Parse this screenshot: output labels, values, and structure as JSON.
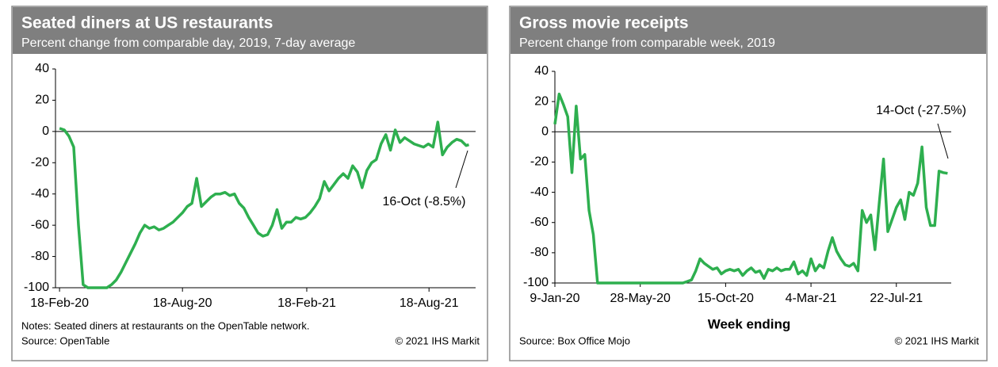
{
  "chart_data": [
    {
      "type": "line",
      "title": "Seated diners at US restaurants",
      "subtitle": "Percent change from comparable day, 2019, 7-day average",
      "notes": "Notes: Seated diners at restaurants on the OpenTable network.",
      "source": "Source: OpenTable",
      "copyright": "© 2021 IHS Markit",
      "annotation": "16-Oct (-8.5%)",
      "xlim": [
        "2020-02-12",
        "2021-10-26"
      ],
      "xticks": [
        {
          "value": "2020-02-18",
          "label": "18-Feb-20"
        },
        {
          "value": "2020-08-18",
          "label": "18-Aug-20"
        },
        {
          "value": "2021-02-18",
          "label": "18-Feb-21"
        },
        {
          "value": "2021-08-18",
          "label": "18-Aug-21"
        }
      ],
      "ylim": [
        -100,
        40
      ],
      "yticks": [
        40,
        20,
        0,
        -20,
        -40,
        -60,
        -80,
        -100
      ],
      "x": [
        "2020-02-18",
        "2020-02-25",
        "2020-03-03",
        "2020-03-10",
        "2020-03-17",
        "2020-03-24",
        "2020-03-31",
        "2020-04-14",
        "2020-04-28",
        "2020-05-05",
        "2020-05-12",
        "2020-05-19",
        "2020-05-26",
        "2020-06-02",
        "2020-06-09",
        "2020-06-16",
        "2020-06-23",
        "2020-06-30",
        "2020-07-07",
        "2020-07-14",
        "2020-07-21",
        "2020-07-28",
        "2020-08-04",
        "2020-08-11",
        "2020-08-18",
        "2020-08-25",
        "2020-09-01",
        "2020-09-08",
        "2020-09-15",
        "2020-09-22",
        "2020-09-29",
        "2020-10-06",
        "2020-10-13",
        "2020-10-20",
        "2020-10-27",
        "2020-11-03",
        "2020-11-10",
        "2020-11-17",
        "2020-11-24",
        "2020-12-01",
        "2020-12-08",
        "2020-12-15",
        "2020-12-22",
        "2020-12-29",
        "2021-01-05",
        "2021-01-12",
        "2021-01-19",
        "2021-01-26",
        "2021-02-02",
        "2021-02-09",
        "2021-02-16",
        "2021-02-23",
        "2021-03-02",
        "2021-03-09",
        "2021-03-16",
        "2021-03-23",
        "2021-03-30",
        "2021-04-06",
        "2021-04-13",
        "2021-04-20",
        "2021-04-27",
        "2021-05-04",
        "2021-05-11",
        "2021-05-18",
        "2021-05-25",
        "2021-06-01",
        "2021-06-08",
        "2021-06-15",
        "2021-06-22",
        "2021-06-29",
        "2021-07-06",
        "2021-07-13",
        "2021-07-20",
        "2021-07-27",
        "2021-08-03",
        "2021-08-10",
        "2021-08-17",
        "2021-08-24",
        "2021-08-31",
        "2021-09-07",
        "2021-09-14",
        "2021-09-21",
        "2021-09-28",
        "2021-10-05",
        "2021-10-12",
        "2021-10-16"
      ],
      "series": [
        {
          "name": "Seated diners",
          "color": "#2eaf4f",
          "values": [
            2,
            1,
            -3,
            -10,
            -60,
            -98,
            -100,
            -100,
            -100,
            -98,
            -95,
            -90,
            -84,
            -78,
            -72,
            -65,
            -60,
            -62,
            -61,
            -63,
            -62,
            -60,
            -58,
            -55,
            -52,
            -48,
            -46,
            -30,
            -48,
            -45,
            -42,
            -40,
            -40,
            -39,
            -41,
            -40,
            -46,
            -49,
            -55,
            -60,
            -65,
            -67,
            -66,
            -60,
            -50,
            -62,
            -58,
            -58,
            -55,
            -56,
            -55,
            -52,
            -48,
            -43,
            -32,
            -38,
            -34,
            -30,
            -27,
            -30,
            -22,
            -26,
            -36,
            -25,
            -20,
            -18,
            -8,
            -2,
            -12,
            1,
            -7,
            -4,
            -6,
            -8,
            -9,
            -10,
            -8,
            -10,
            6,
            -15,
            -10,
            -7,
            -5,
            -6,
            -9,
            -8.5
          ]
        }
      ]
    },
    {
      "type": "line",
      "title": "Gross movie receipts",
      "subtitle": "Percent change from comparable week, 2019",
      "x_label": "Week ending",
      "source": "Source: Box Office Mojo",
      "copyright": "© 2021 IHS Markit",
      "annotation": "14-Oct (-27.5%)",
      "xlim": [
        "2020-01-09",
        "2021-10-20"
      ],
      "xticks": [
        {
          "value": "2020-01-09",
          "label": "9-Jan-20"
        },
        {
          "value": "2020-05-28",
          "label": "28-May-20"
        },
        {
          "value": "2020-10-15",
          "label": "15-Oct-20"
        },
        {
          "value": "2021-03-04",
          "label": "4-Mar-21"
        },
        {
          "value": "2021-07-22",
          "label": "22-Jul-21"
        }
      ],
      "ylim": [
        -100,
        40
      ],
      "yticks": [
        40,
        20,
        0,
        -20,
        -40,
        -60,
        -80,
        -100
      ],
      "x": [
        "2020-01-09",
        "2020-01-16",
        "2020-01-23",
        "2020-01-30",
        "2020-02-06",
        "2020-02-13",
        "2020-02-20",
        "2020-02-27",
        "2020-03-05",
        "2020-03-12",
        "2020-03-19",
        "2020-04-23",
        "2020-05-28",
        "2020-07-02",
        "2020-08-06",
        "2020-08-13",
        "2020-08-20",
        "2020-08-27",
        "2020-09-03",
        "2020-09-10",
        "2020-09-17",
        "2020-09-24",
        "2020-10-01",
        "2020-10-08",
        "2020-10-15",
        "2020-10-22",
        "2020-10-29",
        "2020-11-05",
        "2020-11-12",
        "2020-11-19",
        "2020-11-26",
        "2020-12-03",
        "2020-12-10",
        "2020-12-17",
        "2020-12-24",
        "2020-12-31",
        "2021-01-07",
        "2021-01-14",
        "2021-01-21",
        "2021-01-28",
        "2021-02-04",
        "2021-02-11",
        "2021-02-18",
        "2021-02-25",
        "2021-03-04",
        "2021-03-11",
        "2021-03-18",
        "2021-03-25",
        "2021-04-01",
        "2021-04-08",
        "2021-04-15",
        "2021-04-22",
        "2021-04-29",
        "2021-05-06",
        "2021-05-13",
        "2021-05-20",
        "2021-05-27",
        "2021-06-03",
        "2021-06-10",
        "2021-06-17",
        "2021-06-24",
        "2021-07-01",
        "2021-07-08",
        "2021-07-15",
        "2021-07-22",
        "2021-07-29",
        "2021-08-05",
        "2021-08-12",
        "2021-08-19",
        "2021-08-26",
        "2021-09-02",
        "2021-09-09",
        "2021-09-16",
        "2021-09-23",
        "2021-09-30",
        "2021-10-07",
        "2021-10-14"
      ],
      "series": [
        {
          "name": "Gross movie receipts",
          "color": "#2eaf4f",
          "values": [
            5,
            25,
            18,
            10,
            -27,
            17,
            -18,
            -15,
            -52,
            -68,
            -100,
            -100,
            -100,
            -100,
            -100,
            -99,
            -98,
            -92,
            -84,
            -87,
            -89,
            -91,
            -90,
            -94,
            -92,
            -91,
            -92,
            -91,
            -95,
            -92,
            -90,
            -93,
            -92,
            -97,
            -91,
            -92,
            -90,
            -92,
            -91,
            -91,
            -86,
            -94,
            -92,
            -95,
            -84,
            -92,
            -88,
            -90,
            -79,
            -70,
            -79,
            -84,
            -88,
            -89,
            -87,
            -92,
            -52,
            -60,
            -55,
            -78,
            -47,
            -18,
            -66,
            -58,
            -50,
            -45,
            -58,
            -40,
            -42,
            -34,
            -10,
            -50,
            -62,
            -62,
            -26,
            -27,
            -27.5
          ]
        }
      ]
    }
  ]
}
